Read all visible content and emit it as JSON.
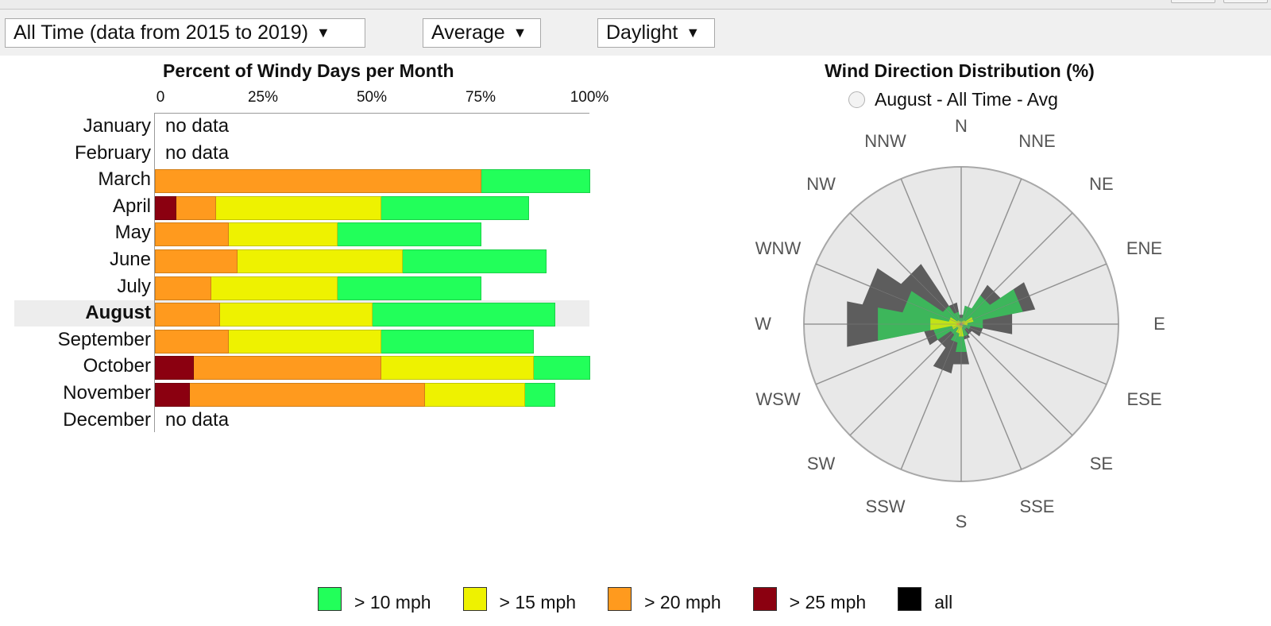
{
  "filters": [
    {
      "label": "All Time (data from 2015 to 2019)",
      "arrow": "▼"
    },
    {
      "label": "Average",
      "arrow": "▼"
    },
    {
      "label": "Daylight",
      "arrow": "▼"
    }
  ],
  "bar_chart": {
    "title": "Percent of Windy Days per Month",
    "ticks": [
      "0",
      "25%",
      "50%",
      "75%",
      "100%"
    ],
    "no_data_label": "no data",
    "selected_month": "August"
  },
  "rose": {
    "title": "Wind Direction Distribution (%)",
    "radio_label": "August - All Time - Avg"
  },
  "legend": [
    {
      "label": "> 10 mph",
      "color": "#22ff5a"
    },
    {
      "label": "> 15 mph",
      "color": "#eef200"
    },
    {
      "label": "> 20 mph",
      "color": "#ff9a1e"
    },
    {
      "label": "> 25 mph",
      "color": "#8b0010"
    },
    {
      "label": "all",
      "color": "#000000"
    }
  ],
  "colors": {
    "gt10": "#22ff5a",
    "gt15": "#eef200",
    "gt20": "#ff9a1e",
    "gt25": "#8b0010",
    "all": "#555555"
  },
  "chart_data": [
    {
      "type": "bar",
      "title": "Percent of Windy Days per Month",
      "categories": [
        "January",
        "February",
        "March",
        "April",
        "May",
        "June",
        "July",
        "August",
        "September",
        "October",
        "November",
        "December"
      ],
      "xlim": [
        0,
        100
      ],
      "series": [
        {
          "name": "> 10 mph",
          "values": [
            null,
            null,
            100,
            86,
            75,
            90,
            75,
            92,
            87,
            100,
            92,
            null
          ]
        },
        {
          "name": "> 15 mph",
          "values": [
            null,
            null,
            75,
            52,
            42,
            57,
            42,
            50,
            52,
            87,
            85,
            null
          ]
        },
        {
          "name": "> 20 mph",
          "values": [
            null,
            null,
            75,
            14,
            17,
            19,
            13,
            15,
            17,
            52,
            62,
            null
          ]
        },
        {
          "name": "> 25 mph",
          "values": [
            null,
            null,
            0,
            5,
            0,
            0,
            0,
            0,
            0,
            9,
            8,
            null
          ]
        }
      ]
    },
    {
      "type": "radar",
      "title": "Wind Direction Distribution (%)",
      "categories": [
        "N",
        "NNE",
        "NE",
        "ENE",
        "E",
        "ESE",
        "SE",
        "SSE",
        "S",
        "SSW",
        "SW",
        "WSW",
        "W",
        "WNW",
        "NW",
        "NNW"
      ],
      "rmax": 100,
      "series": [
        {
          "name": "all",
          "values": [
            6,
            12,
            30,
            48,
            33,
            14,
            8,
            10,
            26,
            32,
            18,
            24,
            74,
            64,
            46,
            14
          ]
        },
        {
          "name": "> 10 mph",
          "values": [
            4,
            12,
            22,
            40,
            14,
            6,
            4,
            8,
            18,
            12,
            8,
            18,
            54,
            38,
            14,
            8
          ]
        },
        {
          "name": "> 15 mph",
          "values": [
            1,
            2,
            3,
            8,
            4,
            1,
            1,
            2,
            8,
            6,
            3,
            6,
            20,
            8,
            3,
            2
          ]
        },
        {
          "name": "> 20 mph",
          "values": [
            0,
            0,
            1,
            2,
            1,
            0,
            0,
            1,
            2,
            1,
            0,
            1,
            3,
            1,
            0,
            0
          ]
        },
        {
          "name": "> 25 mph",
          "values": [
            0,
            0,
            0,
            0,
            0,
            0,
            0,
            0,
            0,
            0,
            0,
            0,
            1,
            0,
            0,
            0
          ]
        }
      ]
    }
  ]
}
